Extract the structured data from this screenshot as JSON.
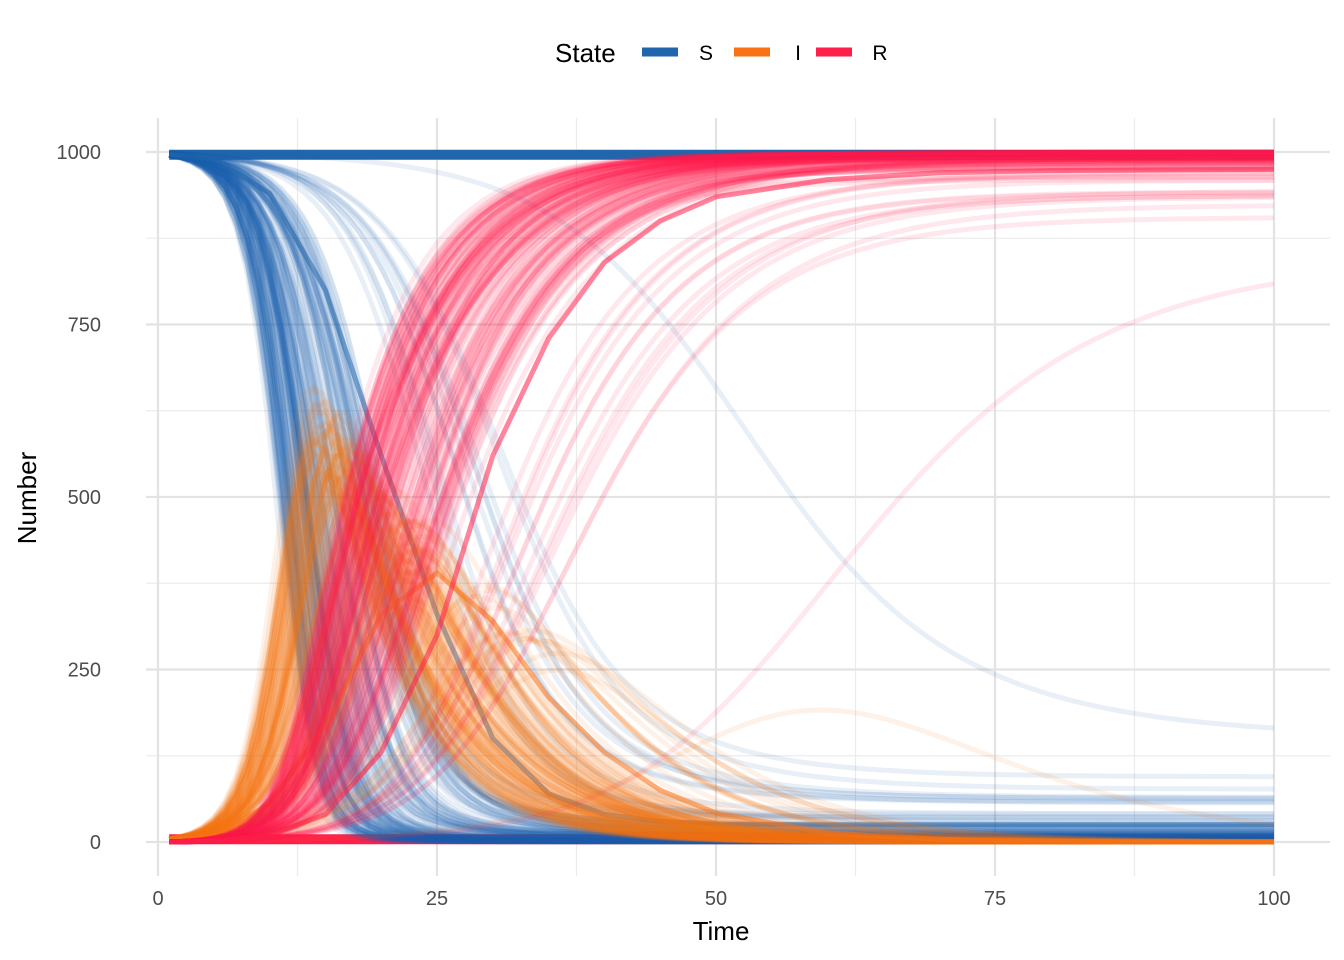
{
  "chart_data": {
    "type": "line",
    "title": "",
    "xlabel": "Time",
    "ylabel": "Number",
    "xlim": [
      0,
      100
    ],
    "ylim": [
      0,
      1000
    ],
    "x_ticks": [
      0,
      25,
      50,
      75,
      100
    ],
    "x_tick_labels": [
      "0",
      "25",
      "50",
      "75",
      "100"
    ],
    "y_ticks": [
      0,
      250,
      500,
      750,
      1000
    ],
    "y_tick_labels": [
      "0",
      "250",
      "500",
      "750",
      "1000"
    ],
    "grid": true,
    "legend": {
      "title": "State",
      "position": "top",
      "entries": [
        {
          "label": "S",
          "color": "#2166ac"
        },
        {
          "label": "I",
          "color": "#f97316"
        },
        {
          "label": "R",
          "color": "#ff1f4b"
        }
      ]
    },
    "series_note_values": {
      "population": 1000,
      "time_start": 1,
      "time_end": 100
    },
    "series": [
      {
        "name": "S",
        "color": "#2166ac",
        "x": [
          1,
          5,
          10,
          15,
          20,
          25,
          30,
          35,
          40,
          45,
          50,
          60,
          70,
          80,
          90,
          100
        ],
        "y": [
          997,
          990,
          940,
          800,
          560,
          330,
          150,
          70,
          40,
          30,
          26,
          25,
          25,
          25,
          25,
          25
        ]
      },
      {
        "name": "I",
        "color": "#f97316",
        "x": [
          1,
          5,
          10,
          15,
          20,
          25,
          30,
          35,
          40,
          45,
          50,
          60,
          70,
          80,
          90,
          100
        ],
        "y": [
          3,
          10,
          55,
          170,
          330,
          390,
          320,
          210,
          130,
          75,
          42,
          13,
          4,
          1,
          0,
          0
        ]
      },
      {
        "name": "R",
        "color": "#ff1f4b",
        "x": [
          1,
          5,
          10,
          15,
          20,
          25,
          30,
          35,
          40,
          45,
          50,
          60,
          70,
          80,
          90,
          100
        ],
        "y": [
          0,
          2,
          10,
          40,
          130,
          300,
          560,
          730,
          840,
          900,
          935,
          960,
          970,
          973,
          974,
          975
        ]
      }
    ]
  }
}
